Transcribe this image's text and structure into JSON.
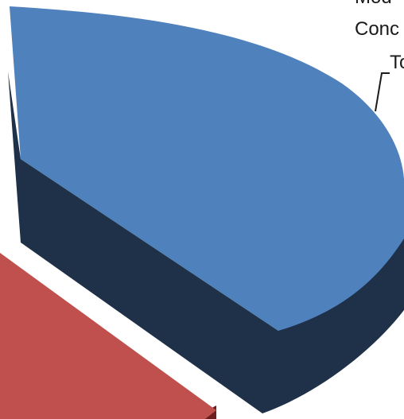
{
  "chart_data": {
    "type": "pie",
    "style": "3d-exploded",
    "title": "",
    "slices": [
      {
        "label_lines": [
          "Mod",
          "Conc",
          "To"
        ],
        "color": "#4F81BD",
        "side_color": "#1F3049"
      },
      {
        "label_lines": [],
        "color": "#C0504D",
        "side_color": "#6B1E1D"
      }
    ],
    "legend": "none"
  }
}
